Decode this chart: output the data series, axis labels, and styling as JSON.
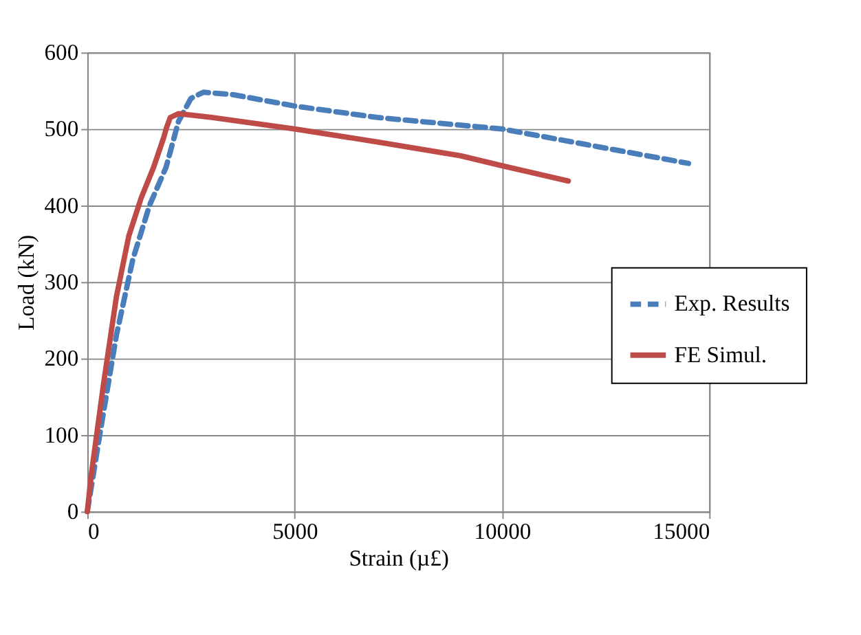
{
  "chart_data": {
    "type": "line",
    "xlabel": "Strain (µ£)",
    "ylabel": "Load (kN)",
    "xlim": [
      0,
      15000
    ],
    "xticks": [
      0,
      5000,
      10000,
      15000
    ],
    "ylim": [
      0,
      600
    ],
    "yticks": [
      0,
      100,
      200,
      300,
      400,
      500,
      600
    ],
    "grid": true,
    "legend": "right",
    "marker": "none",
    "series": [
      {
        "name": "Exp. Results",
        "color": "#4a7ebb",
        "line_style": "dashed",
        "x": [
          0,
          300,
          700,
          1100,
          1500,
          1900,
          2200,
          2500,
          2800,
          3500,
          5000,
          7000,
          10000,
          12000,
          14500
        ],
        "values": [
          0,
          100,
          230,
          330,
          400,
          450,
          510,
          540,
          548,
          545,
          530,
          515,
          500,
          480,
          455
        ]
      },
      {
        "name": "FE Simul.",
        "color": "#be4b48",
        "line_style": "solid",
        "x": [
          0,
          100,
          400,
          700,
          1000,
          1300,
          1600,
          1850,
          1900,
          2000,
          2200,
          3000,
          5000,
          7000,
          9000,
          10000,
          11600
        ],
        "values": [
          0,
          50,
          170,
          280,
          360,
          410,
          450,
          490,
          500,
          515,
          520,
          515,
          500,
          483,
          465,
          452,
          432
        ]
      }
    ]
  }
}
